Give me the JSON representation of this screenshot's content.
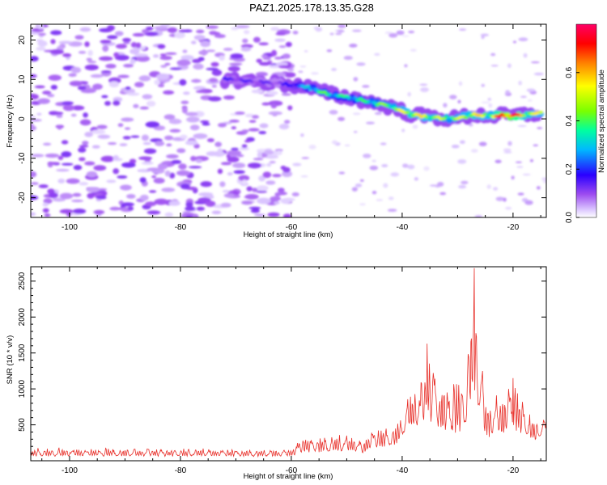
{
  "figure": {
    "title": "PAZ1.2025.178.13.35.G28"
  },
  "chart_data": [
    {
      "type": "heatmap",
      "title": "PAZ1.2025.178.13.35.G28",
      "xlabel": "Height of straight line (km)",
      "ylabel": "Frequency (Hz)",
      "colorbar_label": "Normalized spectral amplitude",
      "xlim": [
        -107,
        -14
      ],
      "ylim": [
        -25,
        24
      ],
      "x_ticks": [
        -100,
        -80,
        -60,
        -40,
        -20
      ],
      "y_ticks": [
        -20,
        -10,
        0,
        10,
        20
      ],
      "colorbar_range": [
        0,
        0.8
      ],
      "colorbar_ticks": [
        "0.0",
        "0.2",
        "0.4",
        "0.6"
      ],
      "colorbar_colors": [
        "#ff00ff",
        "#0000ff",
        "#00ffff",
        "#00ff00",
        "#ffff00",
        "#ff0000",
        "#ff0066"
      ],
      "background_noise": {
        "x_range": [
          -107,
          -60
        ],
        "y_range": [
          -25,
          24
        ],
        "amplitude_range": [
          0.02,
          0.12
        ]
      },
      "ridge": {
        "description_points": [
          {
            "x": -72,
            "y": 10,
            "amplitude": 0.15
          },
          {
            "x": -62,
            "y": 9,
            "amplitude": 0.12
          },
          {
            "x": -57,
            "y": 8,
            "amplitude": 0.3
          },
          {
            "x": -55,
            "y": 7,
            "amplitude": 0.4
          },
          {
            "x": -52,
            "y": 6,
            "amplitude": 0.35
          },
          {
            "x": -48,
            "y": 5,
            "amplitude": 0.35
          },
          {
            "x": -45,
            "y": 4,
            "amplitude": 0.4
          },
          {
            "x": -42,
            "y": 3,
            "amplitude": 0.45
          },
          {
            "x": -38,
            "y": 1,
            "amplitude": 0.55
          },
          {
            "x": -35,
            "y": 0.5,
            "amplitude": 0.5
          },
          {
            "x": -31,
            "y": 0,
            "amplitude": 0.45
          },
          {
            "x": -27,
            "y": 1,
            "amplitude": 0.55
          },
          {
            "x": -24,
            "y": 0.8,
            "amplitude": 0.5
          },
          {
            "x": -21,
            "y": 0.8,
            "amplitude": 0.8
          },
          {
            "x": -18,
            "y": 1,
            "amplitude": 0.55
          },
          {
            "x": -15,
            "y": 1.5,
            "amplitude": 0.5
          }
        ]
      }
    },
    {
      "type": "line",
      "xlabel": "Height of straight line (km)",
      "ylabel": "SNR (10 * v/v)",
      "xlim": [
        -107,
        -14
      ],
      "ylim": [
        0,
        2700
      ],
      "x_ticks": [
        -100,
        -80,
        -60,
        -40,
        -20
      ],
      "y_ticks": [
        500,
        1000,
        1500,
        2000,
        2500
      ],
      "line_color": "#e8302a",
      "series": [
        {
          "envelope": [
            {
              "x": -107,
              "low": 20,
              "high": 190
            },
            {
              "x": -60,
              "low": 20,
              "high": 170
            },
            {
              "x": -58,
              "low": 30,
              "high": 350
            },
            {
              "x": -50,
              "low": 40,
              "high": 400
            },
            {
              "x": -47,
              "low": 40,
              "high": 280
            },
            {
              "x": -45,
              "low": 80,
              "high": 470
            },
            {
              "x": -41,
              "low": 100,
              "high": 520
            },
            {
              "x": -39,
              "low": 250,
              "high": 970
            },
            {
              "x": -37,
              "low": 300,
              "high": 1000
            },
            {
              "x": -35.5,
              "low": 250,
              "high": 1630
            },
            {
              "x": -33,
              "low": 150,
              "high": 1100
            },
            {
              "x": -31,
              "low": 100,
              "high": 1200
            },
            {
              "x": -29,
              "low": 100,
              "high": 1300
            },
            {
              "x": -27,
              "low": 200,
              "high": 2680
            },
            {
              "x": -25,
              "low": 100,
              "high": 950
            },
            {
              "x": -22,
              "low": 100,
              "high": 1000
            },
            {
              "x": -20,
              "low": 150,
              "high": 1150
            },
            {
              "x": -18,
              "low": 200,
              "high": 850
            },
            {
              "x": -16,
              "low": 150,
              "high": 550
            },
            {
              "x": -14,
              "low": 350,
              "high": 700
            }
          ],
          "peaks": [
            {
              "x": -35.5,
              "value": 1630
            },
            {
              "x": -27,
              "value": 2680
            },
            {
              "x": -20,
              "value": 1150
            }
          ]
        }
      ]
    }
  ]
}
